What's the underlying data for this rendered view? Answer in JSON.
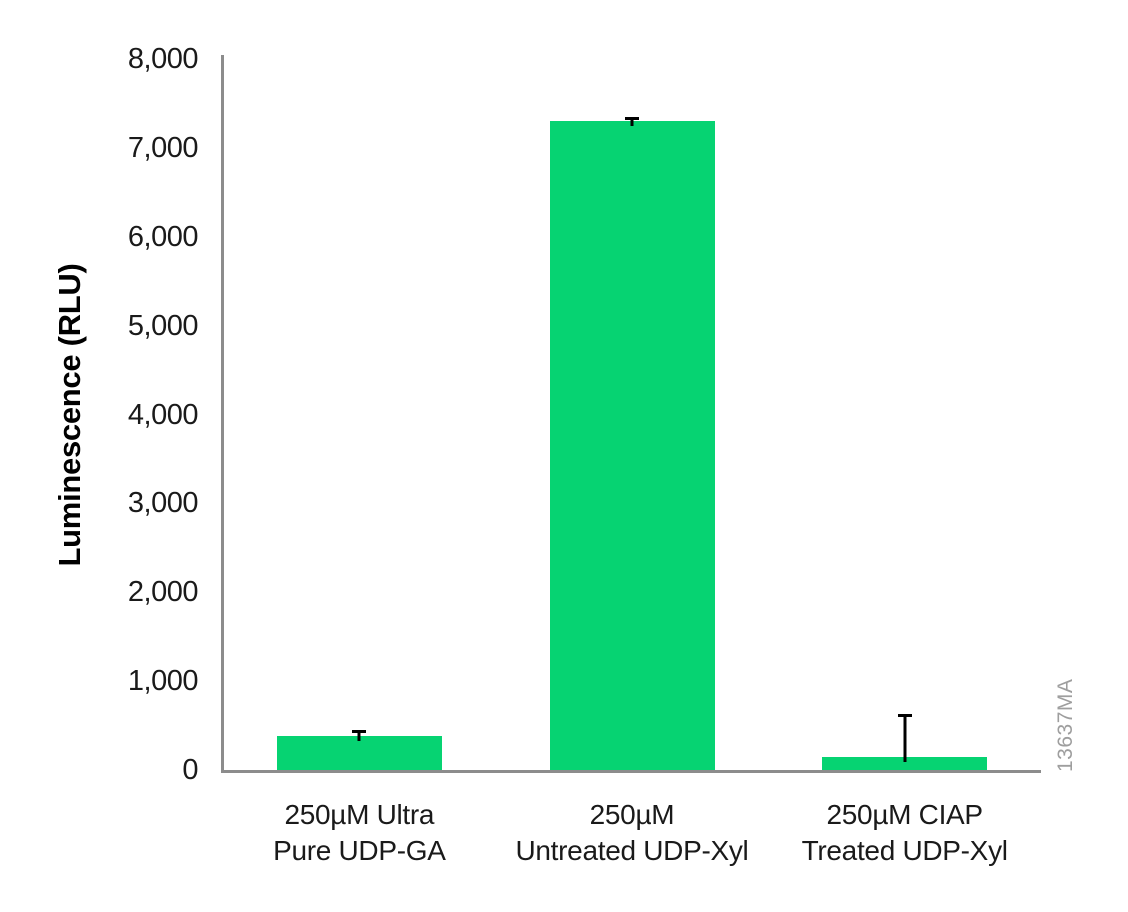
{
  "chart_data": {
    "type": "bar",
    "title": "",
    "xlabel": "",
    "ylabel": "Luminescence (RLU)",
    "ylim": [
      0,
      8000
    ],
    "ytick_interval": 1000,
    "ytick_labels": [
      "0",
      "1,000",
      "2,000",
      "3,000",
      "4,000",
      "5,000",
      "6,000",
      "7,000",
      "8,000"
    ],
    "categories": [
      {
        "line1": "250µM Ultra",
        "line2": "Pure UDP-GA"
      },
      {
        "line1": "250µM",
        "line2": "Untreated UDP-Xyl"
      },
      {
        "line1": "250µM CIAP",
        "line2": "Treated UDP-Xyl"
      }
    ],
    "values": [
      380,
      7300,
      150
    ],
    "errors_plus": [
      65,
      50,
      480
    ],
    "grid": false,
    "legend": false,
    "colors": {
      "bar": "#06D372",
      "axis": "#8C8C8C",
      "error_bar": "#000000",
      "tick_text": "#1a1a1a",
      "watermark_text": "#9E9E9E"
    },
    "watermark": "13637MA"
  }
}
